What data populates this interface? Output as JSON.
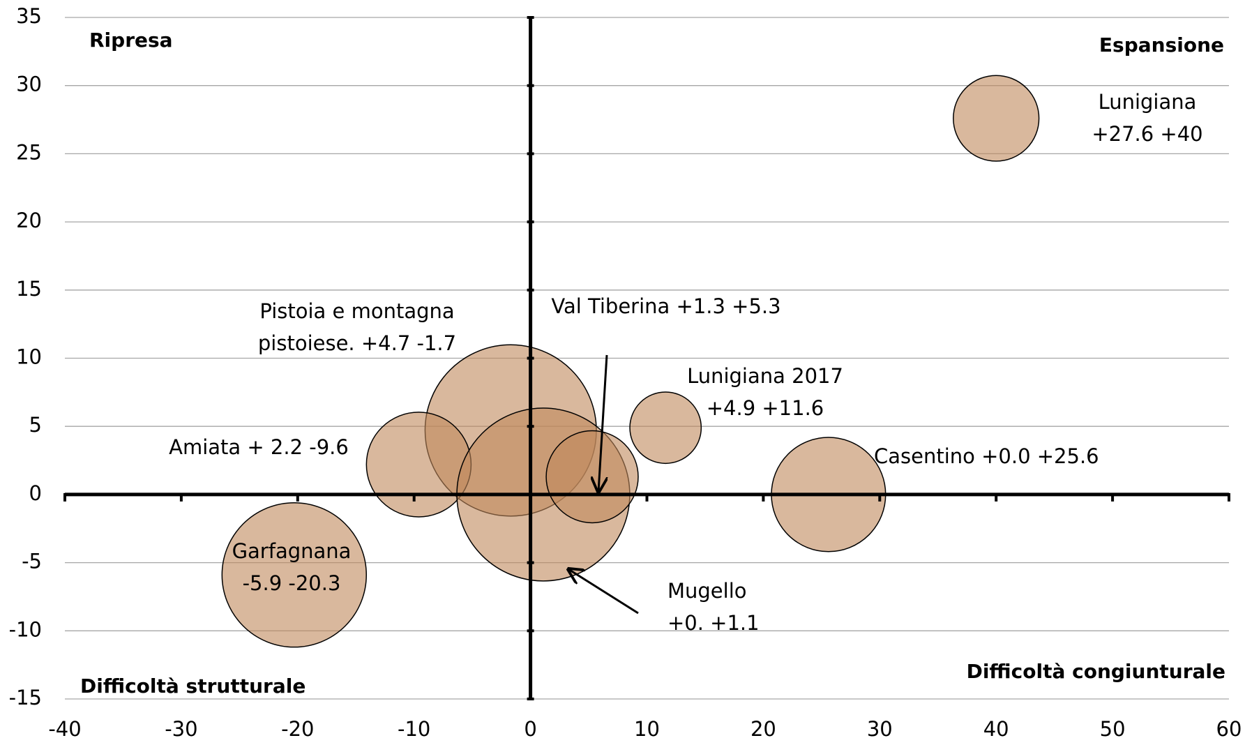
{
  "chart_data": {
    "type": "bubble",
    "series": [
      {
        "color": "#bf885b",
        "x": [
          40.0,
          -1.7,
          -9.6,
          1.1,
          5.3,
          11.6,
          25.6,
          -20.3
        ],
        "values": [
          27.6,
          4.7,
          2.2,
          0.0,
          1.3,
          4.9,
          0.0,
          -5.9
        ],
        "sizes": [
          54,
          108,
          66,
          109,
          58,
          45,
          72,
          91
        ]
      }
    ],
    "xlim": [
      -40,
      60
    ],
    "xticks": [
      -40,
      -30,
      -20,
      -10,
      0,
      10,
      20,
      30,
      40,
      50,
      60
    ],
    "ylim": [
      -15,
      35
    ],
    "yticks": [
      -15,
      -10,
      -5,
      0,
      5,
      10,
      15,
      20,
      25,
      30,
      35
    ],
    "grid": true,
    "quadrant_labels": [
      "Ripresa",
      "Espansione",
      "Difficoltà strutturale",
      "Difficoltà congiunturale"
    ],
    "annotations": [
      {
        "lines": [
          "Lunigiana",
          "+27.6 +40"
        ]
      },
      {
        "lines": [
          "Pistoia e montagna",
          "pistoiese. +4.7 -1.7"
        ]
      },
      {
        "lines": [
          "Val Tiberina +1.3 +5.3"
        ]
      },
      {
        "lines": [
          "Lunigiana 2017",
          "+4.9 +11.6"
        ]
      },
      {
        "lines": [
          "Amiata + 2.2 -9.6"
        ]
      },
      {
        "lines": [
          "Casentino +0.0 +25.6"
        ]
      },
      {
        "lines": [
          "Garfagnana",
          "-5.9  -20.3"
        ]
      },
      {
        "lines": [
          "Mugello",
          "+0. +1.1"
        ]
      }
    ]
  }
}
